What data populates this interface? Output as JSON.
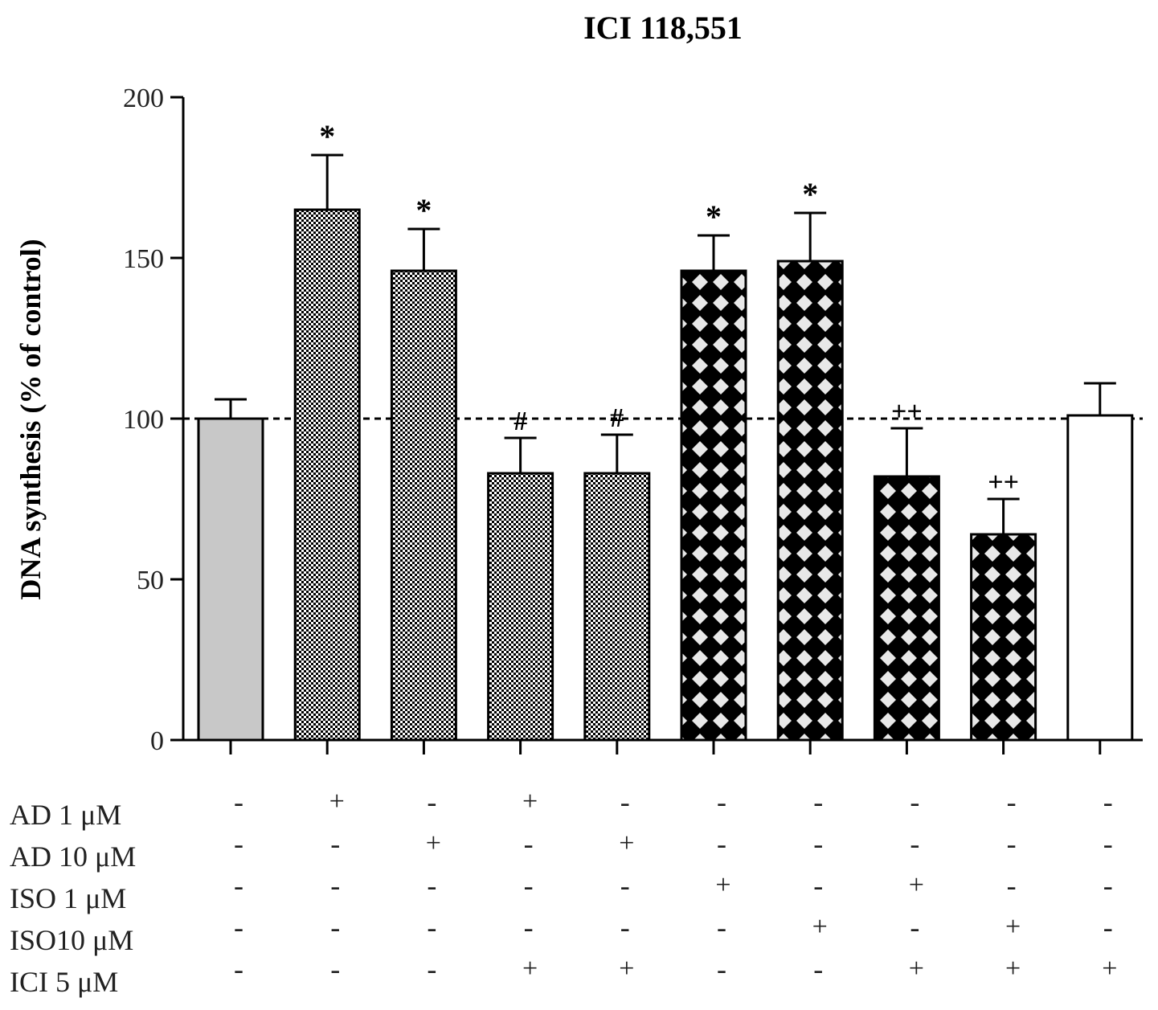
{
  "chart_data": {
    "type": "bar",
    "title": "ICI 118,551",
    "ylabel": "DNA synthesis (% of control)",
    "xlabel": "",
    "ylim": [
      0,
      200
    ],
    "yticks": [
      0,
      50,
      100,
      150,
      200
    ],
    "ytick_labels": [
      "0",
      "50",
      "100",
      "150",
      "200"
    ],
    "reference_line": 100,
    "values": [
      100,
      165,
      146,
      83,
      83,
      146,
      149,
      82,
      64,
      101
    ],
    "errors": [
      6,
      17,
      13,
      11,
      12,
      11,
      15,
      15,
      11,
      10
    ],
    "annotations": [
      "",
      "*",
      "*",
      "#",
      "#",
      "*",
      "*",
      "++",
      "++",
      ""
    ],
    "patterns": [
      "grey",
      "checker",
      "checker",
      "checker",
      "checker",
      "diamond",
      "diamond",
      "diamond",
      "diamond",
      "white"
    ],
    "treatment_rows": [
      {
        "label": "AD 1 μM",
        "marks": [
          "-",
          "+",
          "-",
          "+",
          "-",
          "-",
          "-",
          "-",
          "-",
          "-"
        ]
      },
      {
        "label": "AD 10 μM",
        "marks": [
          "-",
          "-",
          "+",
          "-",
          "+",
          "-",
          "-",
          "-",
          "-",
          "-"
        ]
      },
      {
        "label": "ISO 1 μM",
        "marks": [
          "-",
          "-",
          "-",
          "-",
          "-",
          "+",
          "-",
          "+",
          "-",
          "-"
        ]
      },
      {
        "label": "ISO10 μM",
        "marks": [
          "-",
          "-",
          "-",
          "-",
          "-",
          "-",
          "+",
          "-",
          "+",
          "-"
        ]
      },
      {
        "label": "ICI 5 μM",
        "marks": [
          "-",
          "-",
          "-",
          "+",
          "+",
          "-",
          "-",
          "+",
          "+",
          "+"
        ]
      }
    ],
    "colors": {
      "grey_bar": "#c8c8c8",
      "ink": "#000000",
      "background": "#ffffff"
    }
  }
}
